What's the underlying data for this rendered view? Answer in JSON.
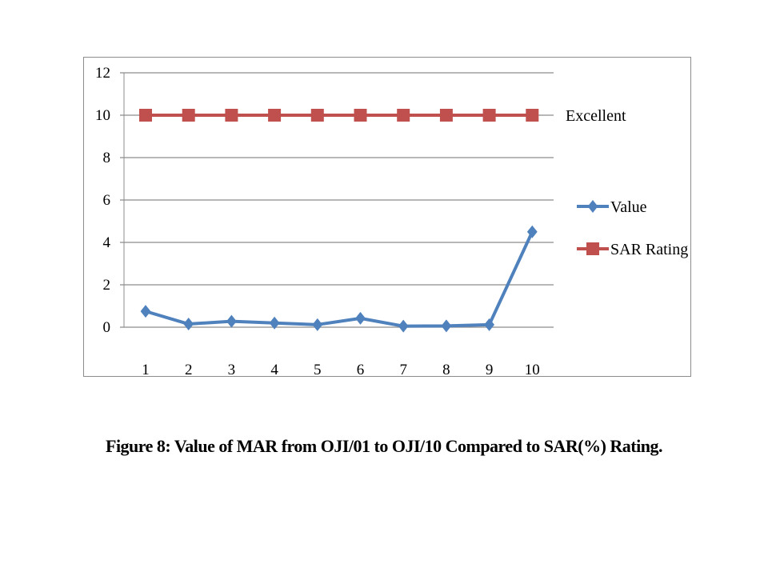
{
  "chart_data": {
    "type": "line",
    "title": "",
    "xlabel": "",
    "ylabel": "",
    "categories": [
      "1",
      "2",
      "3",
      "4",
      "5",
      "6",
      "7",
      "8",
      "9",
      "10"
    ],
    "ylim": [
      0,
      12
    ],
    "yticks": [
      0,
      2,
      4,
      6,
      8,
      10,
      12
    ],
    "grid": true,
    "legend_position": "right",
    "series": [
      {
        "name": "Value",
        "color": "#4F81BD",
        "marker": "diamond",
        "values": [
          0.75,
          0.15,
          0.28,
          0.2,
          0.12,
          0.42,
          0.05,
          0.06,
          0.12,
          4.5
        ]
      },
      {
        "name": "SAR Rating",
        "color": "#C0504D",
        "marker": "square",
        "values": [
          10,
          10,
          10,
          10,
          10,
          10,
          10,
          10,
          10,
          10
        ]
      }
    ],
    "annotations": [
      {
        "text": "Excellent",
        "series": "SAR Rating"
      }
    ]
  },
  "caption": "Figure 8: Value of MAR from OJI/01 to OJI/10 Compared to SAR(%) Rating."
}
